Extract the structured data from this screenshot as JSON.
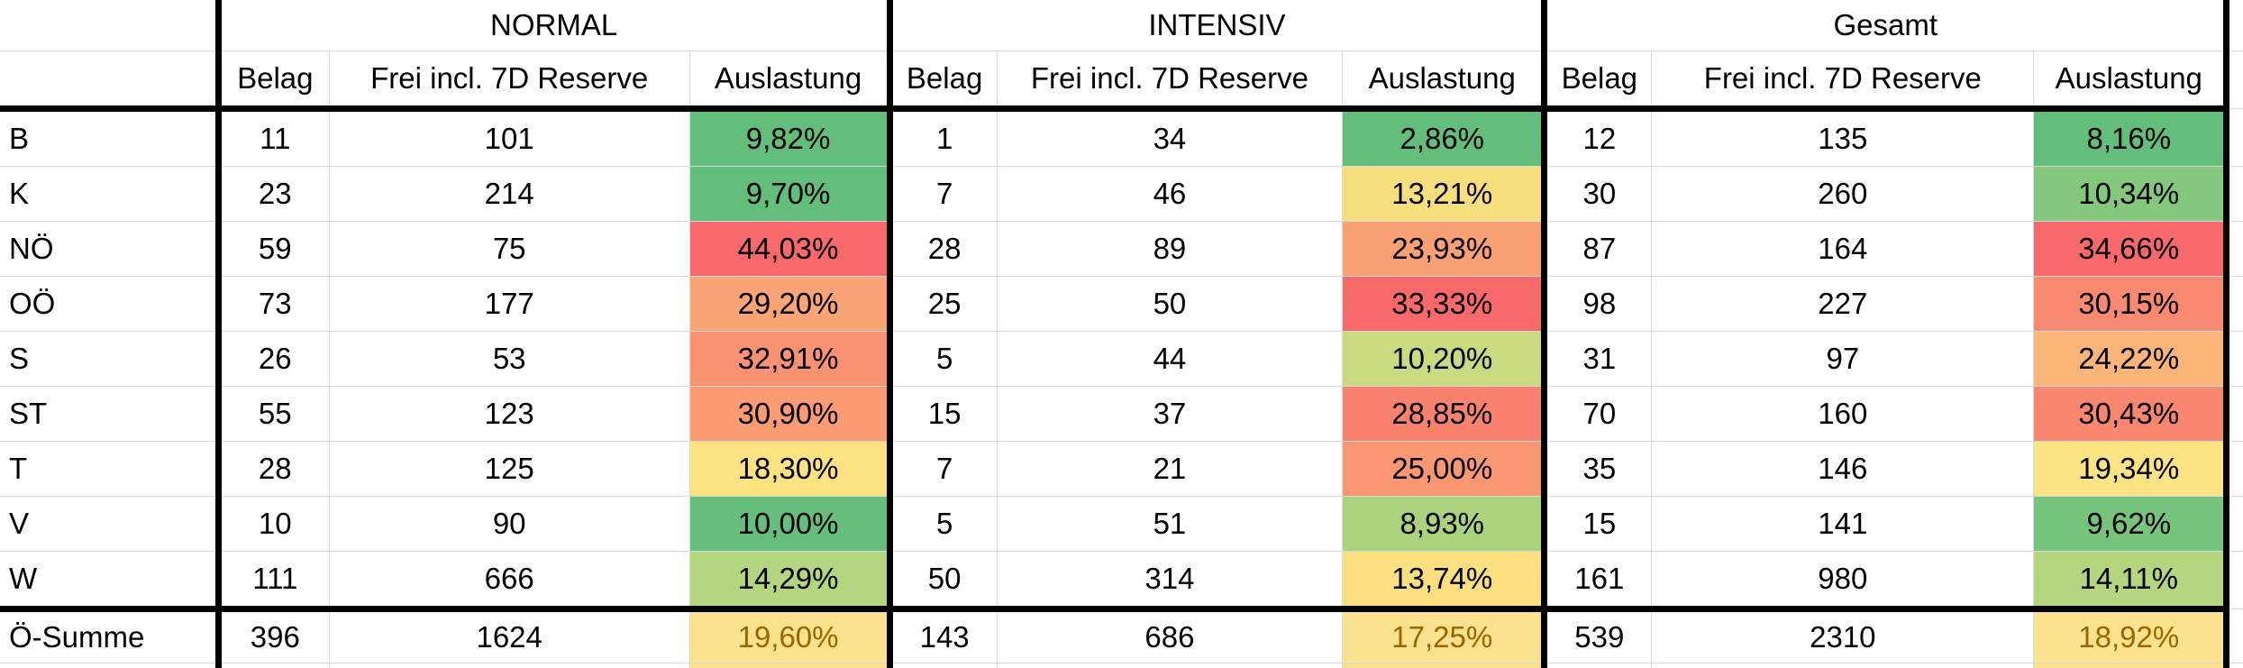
{
  "table": {
    "groups": [
      {
        "label": "NORMAL",
        "columns": [
          "Belag",
          "Frei incl. 7D Reserve",
          "Auslastung"
        ]
      },
      {
        "label": "INTENSIV",
        "columns": [
          "Belag",
          "Frei incl. 7D Reserve",
          "Auslastung"
        ]
      },
      {
        "label": "Gesamt",
        "columns": [
          "Belag",
          "Frei incl. 7D Reserve",
          "Auslastung"
        ]
      }
    ],
    "rows": [
      {
        "label": "B",
        "normal": {
          "belag": "11",
          "frei": "101",
          "auslastung": "9,82%",
          "auslastung_color": "#63BE7B"
        },
        "intensiv": {
          "belag": "1",
          "frei": "34",
          "auslastung": "2,86%",
          "auslastung_color": "#63BE7B"
        },
        "gesamt": {
          "belag": "12",
          "frei": "135",
          "auslastung": "8,16%",
          "auslastung_color": "#63BE7B"
        }
      },
      {
        "label": "K",
        "normal": {
          "belag": "23",
          "frei": "214",
          "auslastung": "9,70%",
          "auslastung_color": "#63BE7B"
        },
        "intensiv": {
          "belag": "7",
          "frei": "46",
          "auslastung": "13,21%",
          "auslastung_color": "#F8DF7D"
        },
        "gesamt": {
          "belag": "30",
          "frei": "260",
          "auslastung": "10,34%",
          "auslastung_color": "#84C87D"
        }
      },
      {
        "label": "NÖ",
        "normal": {
          "belag": "59",
          "frei": "75",
          "auslastung": "44,03%",
          "auslastung_color": "#F8696B"
        },
        "intensiv": {
          "belag": "28",
          "frei": "89",
          "auslastung": "23,93%",
          "auslastung_color": "#FAA075"
        },
        "gesamt": {
          "belag": "87",
          "frei": "164",
          "auslastung": "34,66%",
          "auslastung_color": "#F8696B"
        }
      },
      {
        "label": "OÖ",
        "normal": {
          "belag": "73",
          "frei": "177",
          "auslastung": "29,20%",
          "auslastung_color": "#FBA476"
        },
        "intensiv": {
          "belag": "25",
          "frei": "50",
          "auslastung": "33,33%",
          "auslastung_color": "#F8696B"
        },
        "gesamt": {
          "belag": "98",
          "frei": "227",
          "auslastung": "30,15%",
          "auslastung_color": "#F98971"
        }
      },
      {
        "label": "S",
        "normal": {
          "belag": "26",
          "frei": "53",
          "auslastung": "32,91%",
          "auslastung_color": "#F99272"
        },
        "intensiv": {
          "belag": "5",
          "frei": "44",
          "auslastung": "10,20%",
          "auslastung_color": "#C9DB80"
        },
        "gesamt": {
          "belag": "31",
          "frei": "97",
          "auslastung": "24,22%",
          "auslastung_color": "#FBB578"
        }
      },
      {
        "label": "ST",
        "normal": {
          "belag": "55",
          "frei": "123",
          "auslastung": "30,90%",
          "auslastung_color": "#FA9B73"
        },
        "intensiv": {
          "belag": "15",
          "frei": "37",
          "auslastung": "28,85%",
          "auslastung_color": "#F9826F"
        },
        "gesamt": {
          "belag": "70",
          "frei": "160",
          "auslastung": "30,43%",
          "auslastung_color": "#F98770"
        }
      },
      {
        "label": "T",
        "normal": {
          "belag": "28",
          "frei": "125",
          "auslastung": "18,30%",
          "auslastung_color": "#FCE281"
        },
        "intensiv": {
          "belag": "7",
          "frei": "21",
          "auslastung": "25,00%",
          "auslastung_color": "#FA9773"
        },
        "gesamt": {
          "belag": "35",
          "frei": "146",
          "auslastung": "19,34%",
          "auslastung_color": "#FCE383"
        }
      },
      {
        "label": "V",
        "normal": {
          "belag": "10",
          "frei": "90",
          "auslastung": "10,00%",
          "auslastung_color": "#65BE7B"
        },
        "intensiv": {
          "belag": "5",
          "frei": "51",
          "auslastung": "8,93%",
          "auslastung_color": "#ABD37E"
        },
        "gesamt": {
          "belag": "15",
          "frei": "141",
          "auslastung": "9,62%",
          "auslastung_color": "#75C37C"
        }
      },
      {
        "label": "W",
        "normal": {
          "belag": "111",
          "frei": "666",
          "auslastung": "14,29%",
          "auslastung_color": "#B4D67F"
        },
        "intensiv": {
          "belag": "50",
          "frei": "314",
          "auslastung": "13,74%",
          "auslastung_color": "#FCE07F"
        },
        "gesamt": {
          "belag": "161",
          "frei": "980",
          "auslastung": "14,11%",
          "auslastung_color": "#B5D67F"
        }
      }
    ],
    "summary": {
      "label": "Ö-Summe",
      "normal": {
        "belag": "396",
        "frei": "1624",
        "auslastung": "19,60%"
      },
      "intensiv": {
        "belag": "143",
        "frei": "686",
        "auslastung": "17,25%"
      },
      "gesamt": {
        "belag": "539",
        "frei": "2310",
        "auslastung": "18,92%"
      },
      "auslastung_bg": "#FBE28F",
      "auslastung_text_color": "#9C6500"
    },
    "style_colors": {
      "scale_green": "#63BE7B",
      "scale_yellow": "#FFEB84",
      "scale_red": "#F8696B",
      "gridline": "#D9D9D9",
      "thick_border": "#000000"
    }
  }
}
